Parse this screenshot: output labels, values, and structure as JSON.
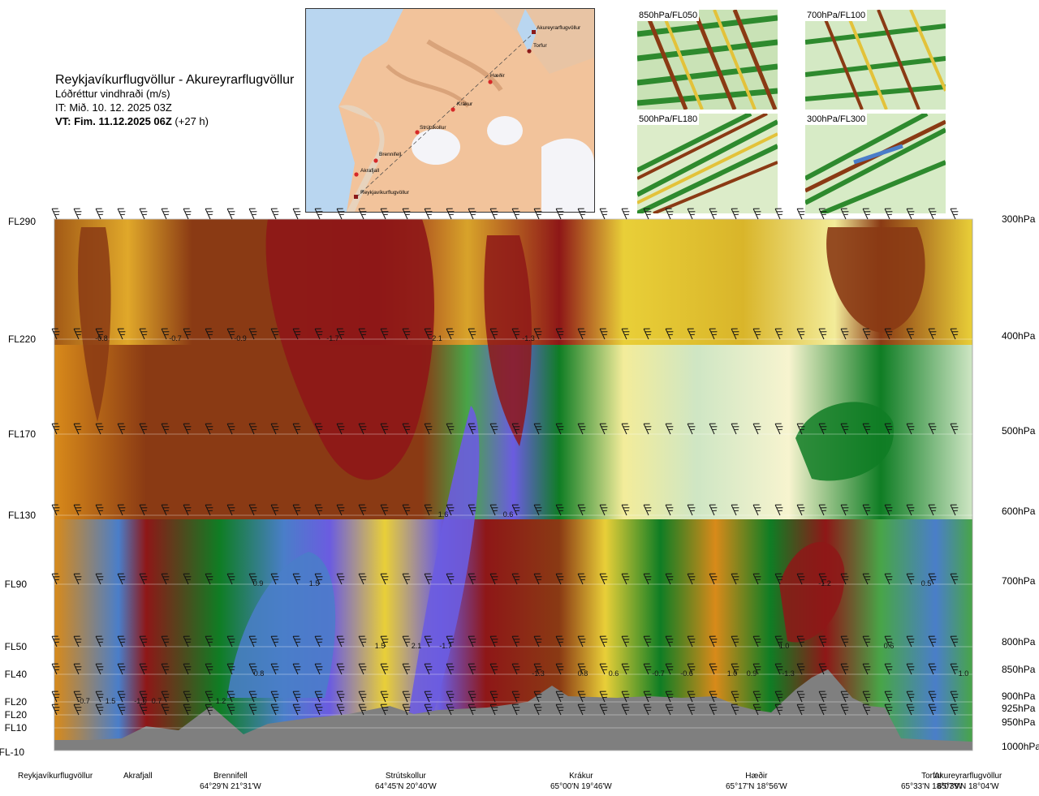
{
  "header": {
    "route": "Reykjavíkurflugvöllur - Akureyrarflugvöllur",
    "product": "Lóðréttur vindhraði (m/s)",
    "issue": "IT: Mið. 10. 12. 2025 03Z",
    "valid_bold": "VT: Fim. 11.12.2025 06Z",
    "valid_lead": " (+27 h)"
  },
  "map": {
    "waypoints": [
      "Akureyrarflugvöllur",
      "Torfur",
      "Hæðir",
      "Krákur",
      "Strútskollur",
      "Brennifell",
      "Akrafjall",
      "Reykjavíkurflugvöllur"
    ]
  },
  "thumbnails": [
    "850hPa/FL050",
    "700hPa/FL100",
    "500hPa/FL180",
    "300hPa/FL300"
  ],
  "left_axis": [
    "FL290",
    "FL220",
    "FL170",
    "FL130",
    "FL90",
    "FL50",
    "FL40",
    "FL20",
    "FL20",
    "FL10",
    "FL-10"
  ],
  "right_axis": [
    "300hPa",
    "400hPa",
    "500hPa",
    "600hPa",
    "700hPa",
    "800hPa",
    "850hPa",
    "900hPa",
    "925hPa",
    "950hPa",
    "1000hPa"
  ],
  "locations": [
    {
      "name": "Reykjavíkurflugvöllur",
      "coord": ""
    },
    {
      "name": "Akrafjall",
      "coord": ""
    },
    {
      "name": "Brennifell",
      "coord": "64°29'N 21°31'W"
    },
    {
      "name": "Strútskollur",
      "coord": "64°45'N 20°40'W"
    },
    {
      "name": "Krákur",
      "coord": "65°00'N 19°46'W"
    },
    {
      "name": "Hæðir",
      "coord": "65°17'N 18°56'W"
    },
    {
      "name": "Torfur",
      "coord": "65°33'N 18°07'W"
    },
    {
      "name": "Akureyrarflugvöllur",
      "coord": "65°39'N 18°04'W"
    }
  ],
  "chart_data": {
    "type": "heatmap",
    "title": "Lóðréttur vindhraði (m/s)",
    "x_categories": [
      "Reykjavíkurflugvöllur",
      "Akrafjall",
      "Brennifell",
      "Strútskollur",
      "Krákur",
      "Hæðir",
      "Torfur",
      "Akureyrarflugvöllur"
    ],
    "y_levels_hpa": [
      300,
      400,
      500,
      600,
      700,
      800,
      850,
      900,
      925,
      950,
      1000
    ],
    "value_labels": [
      {
        "pressure_hpa": 400,
        "label": "-0.8"
      },
      {
        "pressure_hpa": 400,
        "label": "-0.7"
      },
      {
        "pressure_hpa": 400,
        "label": "-0.9"
      },
      {
        "pressure_hpa": 400,
        "label": "-1.7"
      },
      {
        "pressure_hpa": 400,
        "label": "-2.1"
      },
      {
        "pressure_hpa": 400,
        "label": "-1.3"
      },
      {
        "pressure_hpa": 600,
        "label": "1.6"
      },
      {
        "pressure_hpa": 600,
        "label": "0.6"
      },
      {
        "pressure_hpa": 700,
        "label": "0.9"
      },
      {
        "pressure_hpa": 700,
        "label": "1.5"
      },
      {
        "pressure_hpa": 700,
        "label": "-1.2"
      },
      {
        "pressure_hpa": 700,
        "label": "0.5"
      },
      {
        "pressure_hpa": 800,
        "label": "1.5"
      },
      {
        "pressure_hpa": 800,
        "label": "2.1"
      },
      {
        "pressure_hpa": 800,
        "label": "-1.7"
      },
      {
        "pressure_hpa": 800,
        "label": "1.0"
      },
      {
        "pressure_hpa": 800,
        "label": "0.6"
      },
      {
        "pressure_hpa": 850,
        "label": "0.8"
      },
      {
        "pressure_hpa": 850,
        "label": "-1.3"
      },
      {
        "pressure_hpa": 850,
        "label": "0.8"
      },
      {
        "pressure_hpa": 850,
        "label": "0.6"
      },
      {
        "pressure_hpa": 850,
        "label": "-0.7"
      },
      {
        "pressure_hpa": 850,
        "label": "-0.6"
      },
      {
        "pressure_hpa": 850,
        "label": "1.0"
      },
      {
        "pressure_hpa": 850,
        "label": "0.9"
      },
      {
        "pressure_hpa": 850,
        "label": "-1.3"
      },
      {
        "pressure_hpa": 850,
        "label": "1.0"
      },
      {
        "pressure_hpa": 900,
        "label": "-0.7"
      },
      {
        "pressure_hpa": 900,
        "label": "1.5"
      },
      {
        "pressure_hpa": 900,
        "label": "-1.0"
      },
      {
        "pressure_hpa": 900,
        "label": "0.7"
      },
      {
        "pressure_hpa": 900,
        "label": "1.2"
      }
    ],
    "colors": {
      "strong_down": "#8e1717",
      "down": "#8a3a14",
      "weak_down": "#d88a1a",
      "slight_down": "#ebd23a",
      "neutral": "#f7f4cf",
      "slight_up": "#cfe6c4",
      "up": "#48a548",
      "strong_up": "#0f7d24",
      "very_strong_up": "#4a7ec9",
      "extreme_up": "#6b5ce0",
      "terrain": "#7f7f7f"
    }
  }
}
